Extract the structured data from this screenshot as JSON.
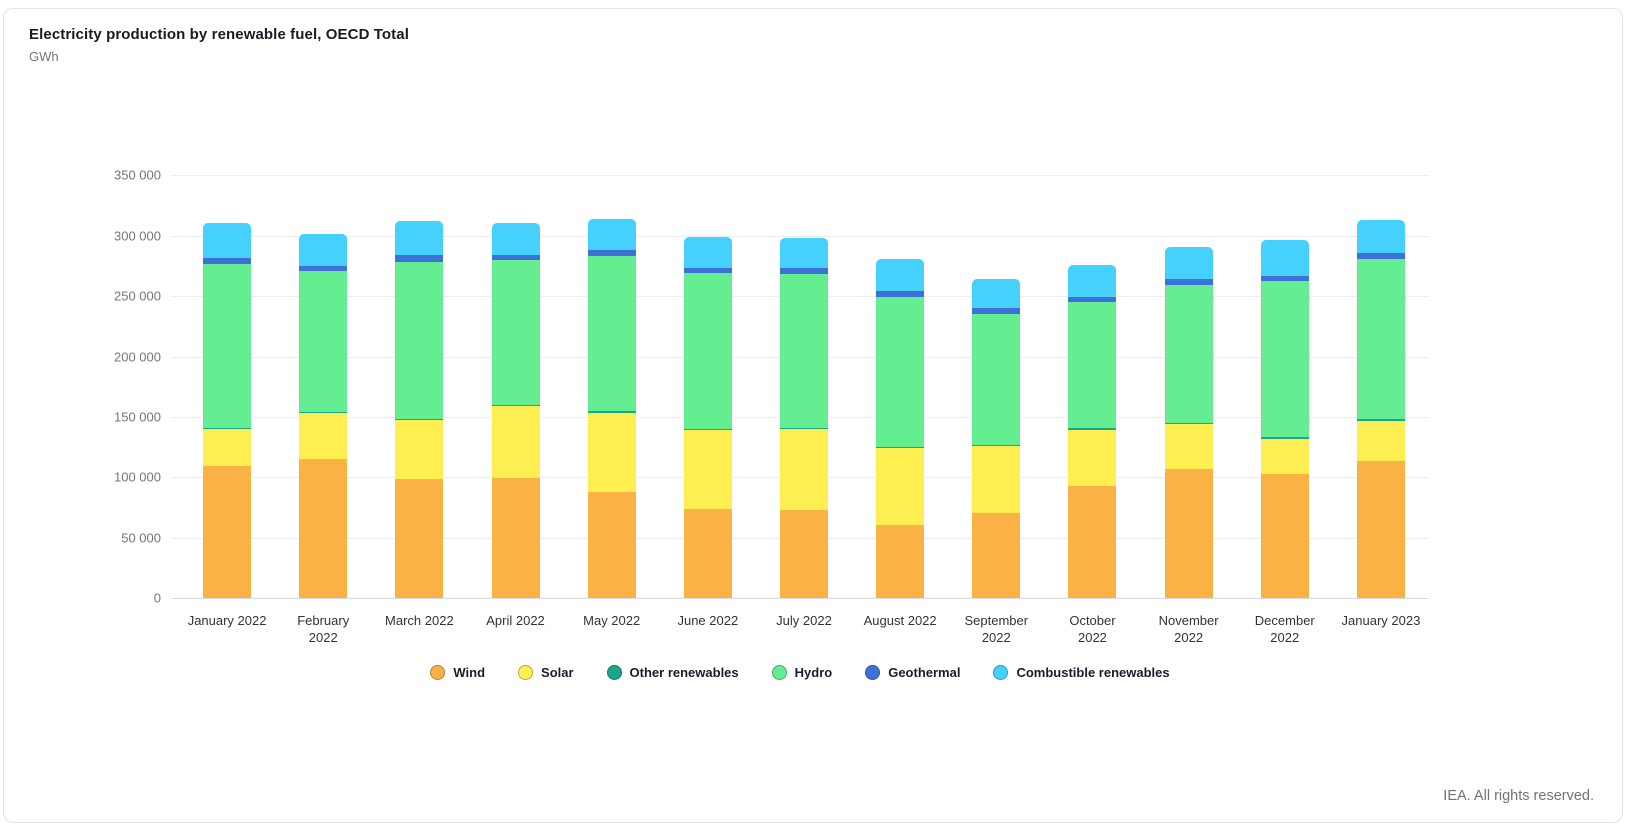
{
  "header": {
    "title": "Electricity production by renewable fuel, OECD Total",
    "unit": "GWh"
  },
  "footer": {
    "text": "IEA. All rights reserved."
  },
  "chart_data": {
    "type": "bar",
    "stacked": true,
    "title": "Electricity production by renewable fuel, OECD Total",
    "ylabel": "GWh",
    "xlabel": "",
    "grid": true,
    "legend_position": "bottom",
    "ylim": [
      0,
      362000
    ],
    "y_ticks": [
      {
        "value": 0,
        "label": "0"
      },
      {
        "value": 50000,
        "label": "50 000"
      },
      {
        "value": 100000,
        "label": "100 000"
      },
      {
        "value": 150000,
        "label": "150 000"
      },
      {
        "value": 200000,
        "label": "200 000"
      },
      {
        "value": 250000,
        "label": "250 000"
      },
      {
        "value": 300000,
        "label": "300 000"
      },
      {
        "value": 350000,
        "label": "350 000"
      }
    ],
    "categories": [
      "January 2022",
      "February 2022",
      "March 2022",
      "April 2022",
      "May 2022",
      "June 2022",
      "July 2022",
      "August 2022",
      "September 2022",
      "October 2022",
      "November 2022",
      "December 2022",
      "January 2023"
    ],
    "xtick_labels": [
      "January 2022",
      "February\n2022",
      "March 2022",
      "April 2022",
      "May 2022",
      "June 2022",
      "July 2022",
      "August 2022",
      "September\n2022",
      "October\n2022",
      "November\n2022",
      "December\n2022",
      "January 2023"
    ],
    "series": [
      {
        "name": "Wind",
        "color": "#FBB244",
        "values": [
          109000,
          115500,
          98500,
          99500,
          88000,
          73500,
          72500,
          60500,
          70500,
          92500,
          107000,
          102500,
          113500
        ]
      },
      {
        "name": "Solar",
        "color": "#FDEE52",
        "values": [
          31000,
          37500,
          49000,
          59500,
          65500,
          65500,
          67500,
          63500,
          55000,
          47000,
          37000,
          29500,
          33000
        ]
      },
      {
        "name": "Other renewables",
        "color": "#1BA78D",
        "values": [
          1000,
          1000,
          1000,
          1000,
          1000,
          1000,
          1000,
          1000,
          1000,
          1000,
          1000,
          1000,
          2000
        ]
      },
      {
        "name": "Hydro",
        "color": "#64EE91",
        "values": [
          136000,
          117000,
          130000,
          120000,
          128500,
          129000,
          127000,
          124500,
          108500,
          105000,
          114000,
          130000,
          132000
        ]
      },
      {
        "name": "Geothermal",
        "color": "#3E71D7",
        "values": [
          4800,
          4000,
          5500,
          4500,
          5000,
          4500,
          5000,
          5000,
          5000,
          4200,
          5500,
          4000,
          5000
        ]
      },
      {
        "name": "Combustible renewables",
        "color": "#46D1FC",
        "values": [
          28500,
          26500,
          28000,
          26000,
          26000,
          25500,
          25500,
          26000,
          24500,
          26000,
          26000,
          29500,
          27500
        ]
      }
    ]
  }
}
